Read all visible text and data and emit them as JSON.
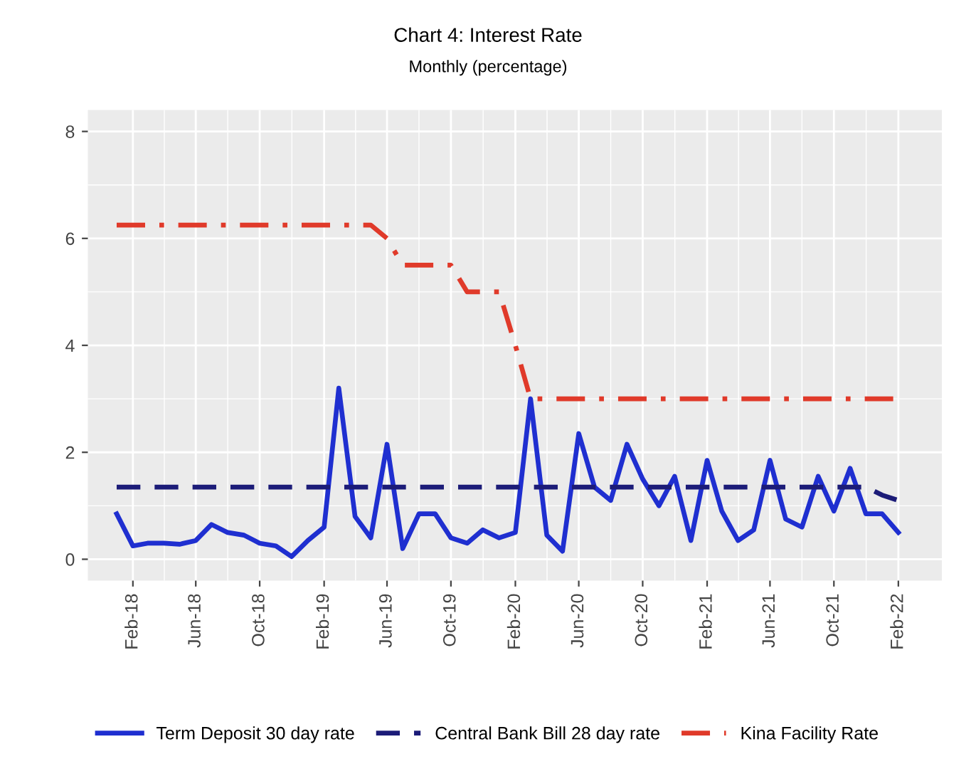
{
  "chart_data": {
    "type": "line",
    "title": "Chart 4: Interest Rate",
    "subtitle": "Monthly (percentage)",
    "x": [
      "2018-01",
      "2018-02",
      "2018-03",
      "2018-04",
      "2018-05",
      "2018-06",
      "2018-07",
      "2018-08",
      "2018-09",
      "2018-10",
      "2018-11",
      "2018-12",
      "2019-01",
      "2019-02",
      "2019-03",
      "2019-04",
      "2019-05",
      "2019-06",
      "2019-07",
      "2019-08",
      "2019-09",
      "2019-10",
      "2019-11",
      "2019-12",
      "2020-01",
      "2020-02",
      "2020-03",
      "2020-04",
      "2020-05",
      "2020-06",
      "2020-07",
      "2020-08",
      "2020-09",
      "2020-10",
      "2020-11",
      "2020-12",
      "2021-01",
      "2021-02",
      "2021-03",
      "2021-04",
      "2021-05",
      "2021-06",
      "2021-07",
      "2021-08",
      "2021-09",
      "2021-10",
      "2021-11",
      "2021-12",
      "2022-01",
      "2022-02"
    ],
    "series": [
      {
        "name": "Term Deposit 30 day rate",
        "color": "#1f2fd0",
        "line_style": "solid",
        "values": [
          0.85,
          0.25,
          0.3,
          0.3,
          0.28,
          0.35,
          0.65,
          0.5,
          0.45,
          0.3,
          0.25,
          0.05,
          0.35,
          0.6,
          3.2,
          0.8,
          0.4,
          2.15,
          0.2,
          0.85,
          0.85,
          0.4,
          0.3,
          0.55,
          0.4,
          0.5,
          3.0,
          0.45,
          0.15,
          2.35,
          1.35,
          1.1,
          2.15,
          1.5,
          1.0,
          1.55,
          0.35,
          1.85,
          0.9,
          0.35,
          0.55,
          1.85,
          0.75,
          0.6,
          1.55,
          0.9,
          1.7,
          0.85,
          0.85,
          0.5
        ]
      },
      {
        "name": "Central Bank Bill 28 day rate",
        "color": "#1c1c78",
        "line_style": "dashed",
        "values": [
          1.35,
          1.35,
          1.35,
          1.35,
          1.35,
          1.35,
          1.35,
          1.35,
          1.35,
          1.35,
          1.35,
          1.35,
          1.35,
          1.35,
          1.35,
          1.35,
          1.35,
          1.35,
          1.35,
          1.35,
          1.35,
          1.35,
          1.35,
          1.35,
          1.35,
          1.35,
          1.35,
          1.35,
          1.35,
          1.35,
          1.35,
          1.35,
          1.35,
          1.35,
          1.35,
          1.35,
          1.35,
          1.35,
          1.35,
          1.35,
          1.35,
          1.35,
          1.35,
          1.35,
          1.35,
          1.35,
          1.35,
          1.35,
          1.2,
          1.1
        ]
      },
      {
        "name": "Kina Facility Rate",
        "color": "#e03a2a",
        "line_style": "dashdot",
        "values": [
          6.25,
          6.25,
          6.25,
          6.25,
          6.25,
          6.25,
          6.25,
          6.25,
          6.25,
          6.25,
          6.25,
          6.25,
          6.25,
          6.25,
          6.25,
          6.25,
          6.25,
          6.0,
          5.5,
          5.5,
          5.5,
          5.5,
          5.0,
          5.0,
          5.0,
          4.0,
          3.0,
          3.0,
          3.0,
          3.0,
          3.0,
          3.0,
          3.0,
          3.0,
          3.0,
          3.0,
          3.0,
          3.0,
          3.0,
          3.0,
          3.0,
          3.0,
          3.0,
          3.0,
          3.0,
          3.0,
          3.0,
          3.0,
          3.0,
          3.0
        ]
      }
    ],
    "xlim": [
      "2017-11-07",
      "2022-04-25"
    ],
    "xticks": [
      {
        "value": "2018-02",
        "label": "Feb-18"
      },
      {
        "value": "2018-06",
        "label": "Jun-18"
      },
      {
        "value": "2018-10",
        "label": "Oct-18"
      },
      {
        "value": "2019-02",
        "label": "Feb-19"
      },
      {
        "value": "2019-06",
        "label": "Jun-19"
      },
      {
        "value": "2019-10",
        "label": "Oct-19"
      },
      {
        "value": "2020-02",
        "label": "Feb-20"
      },
      {
        "value": "2020-06",
        "label": "Jun-20"
      },
      {
        "value": "2020-10",
        "label": "Oct-20"
      },
      {
        "value": "2021-02",
        "label": "Feb-21"
      },
      {
        "value": "2021-06",
        "label": "Jun-21"
      },
      {
        "value": "2021-10",
        "label": "Oct-21"
      },
      {
        "value": "2022-02",
        "label": "Feb-22"
      }
    ],
    "ylim": [
      -0.4,
      8.4
    ],
    "yticks": [
      0,
      2,
      4,
      6,
      8
    ],
    "grid": true,
    "legend": "bottom"
  }
}
